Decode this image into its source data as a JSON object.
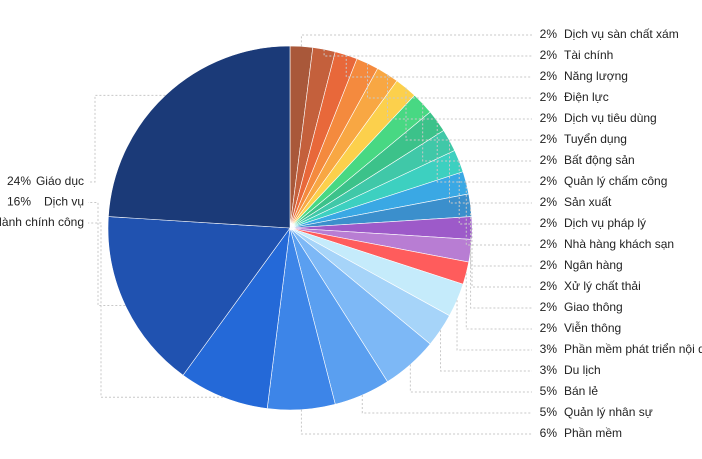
{
  "chart_data": {
    "type": "pie",
    "categories": [
      "Dịch vụ sàn chất xám",
      "Tài chính",
      "Năng lượng",
      "Điện lực",
      "Dịch vụ tiêu dùng",
      "Tuyển dụng",
      "Bất động sản",
      "Quản lý chấm công",
      "Sản xuất",
      "Dịch vụ pháp lý",
      "Nhà hàng khách sạn",
      "Ngân hàng",
      "Xử lý chất thải",
      "Giao thông",
      "Viễn thông",
      "Phần mềm phát triển nội dung",
      "Du lịch",
      "Bán lẻ",
      "Quản lý nhân sự",
      "Phần mềm",
      "Hành chính công",
      "Dịch vụ",
      "Giáo dục"
    ],
    "values": [
      2,
      2,
      2,
      2,
      2,
      2,
      2,
      2,
      2,
      2,
      2,
      2,
      2,
      2,
      2,
      3,
      3,
      5,
      5,
      6,
      8,
      16,
      24
    ],
    "value_labels": [
      "2%",
      "2%",
      "2%",
      "2%",
      "2%",
      "2%",
      "2%",
      "2%",
      "2%",
      "2%",
      "2%",
      "2%",
      "2%",
      "2%",
      "2%",
      "3%",
      "3%",
      "5%",
      "5%",
      "6%",
      null,
      "16%",
      "24%"
    ],
    "colors": [
      "#a9583a",
      "#c4603c",
      "#e8683a",
      "#f48a3e",
      "#f8a743",
      "#fcd04c",
      "#48d883",
      "#3cc28a",
      "#40c8a8",
      "#3dd0c0",
      "#3aa8e4",
      "#3b8fcc",
      "#9d5ac9",
      "#b87dd3",
      "#ff5c5c",
      "#c5ebfb",
      "#a6d4f9",
      "#7db8f6",
      "#5a9ff0",
      "#3d85e8",
      "#2469d8",
      "#2052b0",
      "#1b3a78"
    ]
  }
}
